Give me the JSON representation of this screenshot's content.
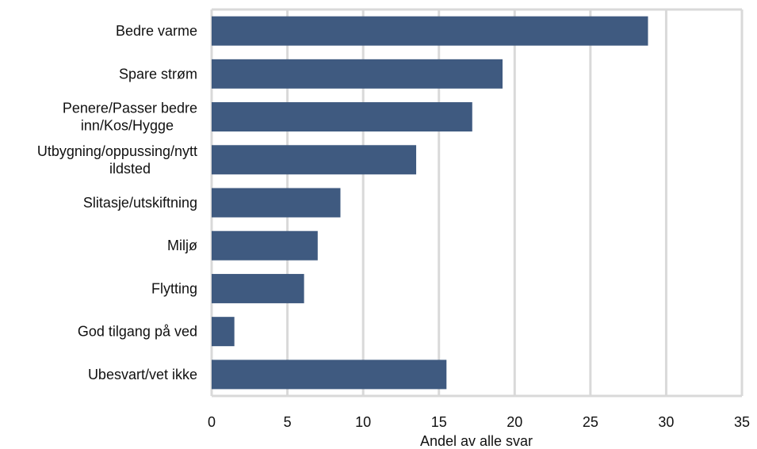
{
  "chart_data": {
    "type": "bar",
    "orientation": "horizontal",
    "categories": [
      "Bedre varme",
      "Spare strøm",
      "Penere/Passer bedre inn/Kos/Hygge",
      "Utbygning/oppussing/nytt ildsted",
      "Slitasje/utskiftning",
      "Miljø",
      "Flytting",
      "God tilgang på ved",
      "Ubesvart/vet ikke"
    ],
    "category_lines": [
      [
        "Bedre varme"
      ],
      [
        "Spare strøm"
      ],
      [
        "Penere/Passer bedre",
        "inn/Kos/Hygge"
      ],
      [
        "Utbygning/oppussing/nytt",
        "ildsted"
      ],
      [
        "Slitasje/utskiftning"
      ],
      [
        "Miljø"
      ],
      [
        "Flytting"
      ],
      [
        "God tilgang på ved"
      ],
      [
        "Ubesvart/vet ikke"
      ]
    ],
    "values": [
      28.8,
      19.2,
      17.2,
      13.5,
      8.5,
      7.0,
      6.1,
      1.5,
      15.5
    ],
    "xlabel": "Andel av alle svar",
    "xlim": [
      0,
      35
    ],
    "xticks": [
      0,
      5,
      10,
      15,
      20,
      25,
      30,
      35
    ],
    "grid": true,
    "colors": {
      "bar": "#3f5a80",
      "grid": "#d9d9d9",
      "text": "#111111"
    }
  }
}
